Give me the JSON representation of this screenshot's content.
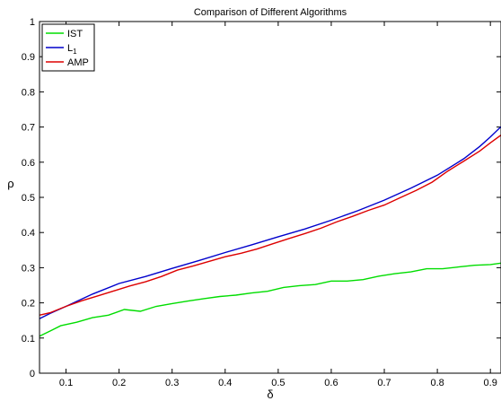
{
  "chart_data": {
    "type": "line",
    "title": "Comparison of Different Algorithms",
    "xlabel": "δ",
    "ylabel": "ρ",
    "xlim": [
      0.05,
      0.92
    ],
    "ylim": [
      0,
      1
    ],
    "xticks": [
      "0.1",
      "0.2",
      "0.3",
      "0.4",
      "0.5",
      "0.6",
      "0.7",
      "0.8",
      "0.9"
    ],
    "yticks": [
      "0",
      "0.1",
      "0.2",
      "0.3",
      "0.4",
      "0.5",
      "0.6",
      "0.7",
      "0.8",
      "0.9",
      "1"
    ],
    "grid": false,
    "legend_position": "top-left",
    "series": [
      {
        "name": "IST",
        "color": "#00dd00",
        "x": [
          0.05,
          0.07,
          0.09,
          0.12,
          0.15,
          0.18,
          0.21,
          0.24,
          0.27,
          0.3,
          0.33,
          0.36,
          0.39,
          0.42,
          0.45,
          0.48,
          0.51,
          0.54,
          0.57,
          0.6,
          0.63,
          0.66,
          0.69,
          0.72,
          0.75,
          0.78,
          0.81,
          0.84,
          0.87,
          0.9,
          0.92
        ],
        "y": [
          0.105,
          0.12,
          0.135,
          0.145,
          0.158,
          0.165,
          0.181,
          0.176,
          0.19,
          0.198,
          0.205,
          0.212,
          0.218,
          0.222,
          0.228,
          0.233,
          0.244,
          0.249,
          0.252,
          0.262,
          0.262,
          0.266,
          0.276,
          0.283,
          0.288,
          0.297,
          0.297,
          0.302,
          0.307,
          0.309,
          0.313
        ]
      },
      {
        "name": "L1",
        "legend_label": "L",
        "legend_subscript": "1",
        "color": "#0000cc",
        "x": [
          0.05,
          0.07,
          0.1,
          0.15,
          0.2,
          0.25,
          0.3,
          0.35,
          0.4,
          0.45,
          0.5,
          0.55,
          0.6,
          0.65,
          0.7,
          0.75,
          0.8,
          0.85,
          0.88,
          0.9,
          0.92
        ],
        "y": [
          0.155,
          0.17,
          0.19,
          0.225,
          0.255,
          0.275,
          0.298,
          0.32,
          0.343,
          0.365,
          0.388,
          0.41,
          0.435,
          0.462,
          0.492,
          0.526,
          0.563,
          0.61,
          0.645,
          0.672,
          0.701
        ]
      },
      {
        "name": "AMP",
        "color": "#dd0000",
        "x": [
          0.05,
          0.07,
          0.1,
          0.13,
          0.16,
          0.19,
          0.22,
          0.25,
          0.28,
          0.31,
          0.34,
          0.37,
          0.4,
          0.43,
          0.46,
          0.49,
          0.52,
          0.55,
          0.58,
          0.61,
          0.64,
          0.67,
          0.7,
          0.73,
          0.76,
          0.79,
          0.82,
          0.85,
          0.88,
          0.9,
          0.92
        ],
        "y": [
          0.165,
          0.172,
          0.19,
          0.206,
          0.22,
          0.234,
          0.248,
          0.26,
          0.275,
          0.293,
          0.305,
          0.318,
          0.331,
          0.341,
          0.353,
          0.368,
          0.383,
          0.397,
          0.412,
          0.43,
          0.446,
          0.463,
          0.478,
          0.499,
          0.52,
          0.543,
          0.575,
          0.603,
          0.632,
          0.655,
          0.677
        ]
      }
    ]
  }
}
